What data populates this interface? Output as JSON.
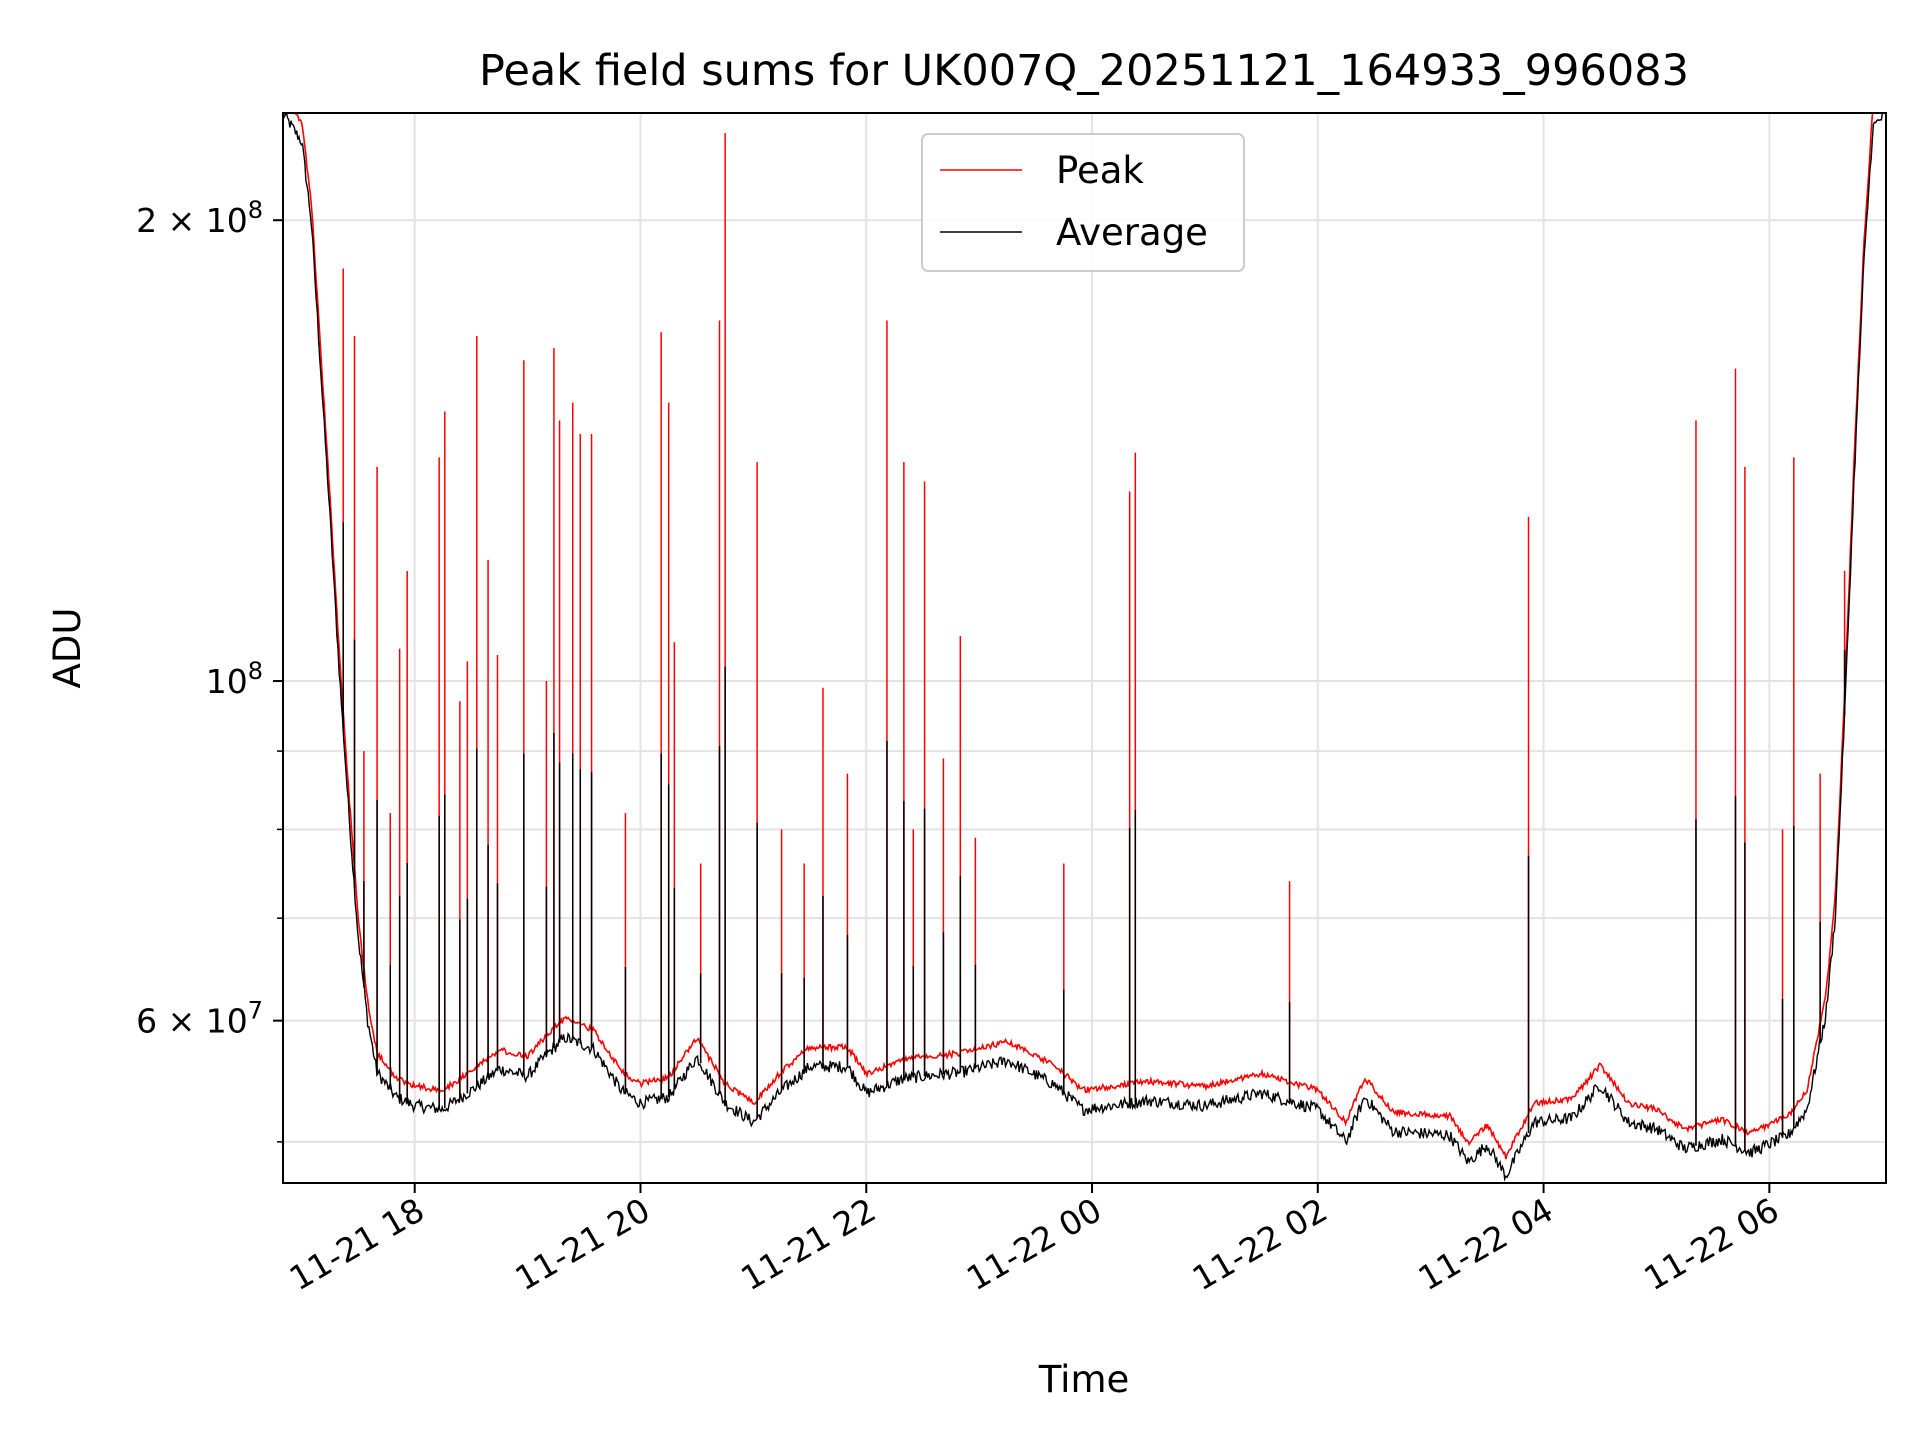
{
  "chart_data": {
    "type": "line",
    "title": "Peak field sums for UK007Q_20251121_164933_996083",
    "xlabel": "Time",
    "ylabel": "ADU",
    "yscale": "log",
    "ylim": [
      47000000,
      235000000
    ],
    "xlim": [
      "2025-11-21 16:50",
      "2025-11-22 07:02"
    ],
    "x_ticks": [
      {
        "t": "2025-11-21 18:00",
        "label": "11-21 18"
      },
      {
        "t": "2025-11-21 20:00",
        "label": "11-21 20"
      },
      {
        "t": "2025-11-21 22:00",
        "label": "11-21 22"
      },
      {
        "t": "2025-11-22 00:00",
        "label": "11-22 00"
      },
      {
        "t": "2025-11-22 02:00",
        "label": "11-22 02"
      },
      {
        "t": "2025-11-22 04:00",
        "label": "11-22 04"
      },
      {
        "t": "2025-11-22 06:00",
        "label": "11-22 06"
      }
    ],
    "y_ticks": [
      {
        "v": 60000000,
        "base": "6",
        "exp": "7"
      },
      {
        "v": 100000000,
        "base": "",
        "exp": "8"
      },
      {
        "v": 200000000,
        "base": "2",
        "exp": "8"
      }
    ],
    "y_minor": [
      50000000,
      70000000,
      80000000,
      90000000
    ],
    "grid": true,
    "legend_position": "top-center",
    "colors": {
      "Peak": "#ff0000",
      "Average": "#000000"
    },
    "series": [
      {
        "name": "Peak",
        "spikes": [
          [
            "2025-11-21 17:22",
            186000000
          ],
          [
            "2025-11-21 17:28",
            168000000
          ],
          [
            "2025-11-21 17:33",
            90000000
          ],
          [
            "2025-11-21 17:40",
            138000000
          ],
          [
            "2025-11-21 17:47",
            82000000
          ],
          [
            "2025-11-21 17:52",
            105000000
          ],
          [
            "2025-11-21 17:56",
            118000000
          ],
          [
            "2025-11-21 18:13",
            140000000
          ],
          [
            "2025-11-21 18:16",
            150000000
          ],
          [
            "2025-11-21 18:24",
            97000000
          ],
          [
            "2025-11-21 18:28",
            103000000
          ],
          [
            "2025-11-21 18:33",
            168000000
          ],
          [
            "2025-11-21 18:39",
            120000000
          ],
          [
            "2025-11-21 18:44",
            104000000
          ],
          [
            "2025-11-21 18:58",
            162000000
          ],
          [
            "2025-11-21 19:10",
            100000000
          ],
          [
            "2025-11-21 19:14",
            165000000
          ],
          [
            "2025-11-21 19:17",
            148000000
          ],
          [
            "2025-11-21 19:24",
            152000000
          ],
          [
            "2025-11-21 19:28",
            145000000
          ],
          [
            "2025-11-21 19:34",
            145000000
          ],
          [
            "2025-11-21 19:52",
            82000000
          ],
          [
            "2025-11-21 20:11",
            169000000
          ],
          [
            "2025-11-21 20:15",
            152000000
          ],
          [
            "2025-11-21 20:18",
            106000000
          ],
          [
            "2025-11-21 20:32",
            76000000
          ],
          [
            "2025-11-21 20:42",
            172000000
          ],
          [
            "2025-11-21 20:45",
            228000000
          ],
          [
            "2025-11-21 21:02",
            139000000
          ],
          [
            "2025-11-21 21:15",
            80000000
          ],
          [
            "2025-11-21 21:27",
            76000000
          ],
          [
            "2025-11-21 21:37",
            99000000
          ],
          [
            "2025-11-21 21:50",
            87000000
          ],
          [
            "2025-11-21 22:11",
            172000000
          ],
          [
            "2025-11-21 22:20",
            139000000
          ],
          [
            "2025-11-21 22:25",
            80000000
          ],
          [
            "2025-11-21 22:31",
            135000000
          ],
          [
            "2025-11-21 22:41",
            89000000
          ],
          [
            "2025-11-21 22:50",
            107000000
          ],
          [
            "2025-11-21 22:58",
            79000000
          ],
          [
            "2025-11-21 23:45",
            76000000
          ],
          [
            "2025-11-22 00:20",
            133000000
          ],
          [
            "2025-11-22 00:23",
            141000000
          ],
          [
            "2025-11-22 01:45",
            74000000
          ],
          [
            "2025-11-22 03:52",
            128000000
          ],
          [
            "2025-11-22 05:21",
            148000000
          ],
          [
            "2025-11-22 05:42",
            160000000
          ],
          [
            "2025-11-22 05:47",
            138000000
          ],
          [
            "2025-11-22 06:07",
            80000000
          ],
          [
            "2025-11-22 06:13",
            140000000
          ],
          [
            "2025-11-22 06:27",
            87000000
          ],
          [
            "2025-11-22 06:40",
            118000000
          ]
        ]
      },
      {
        "name": "Average",
        "baseline": [
          [
            "2025-11-21 16:50",
            235000000
          ],
          [
            "2025-11-21 17:00",
            225000000
          ],
          [
            "2025-11-21 17:05",
            200000000
          ],
          [
            "2025-11-21 17:10",
            160000000
          ],
          [
            "2025-11-21 17:15",
            128000000
          ],
          [
            "2025-11-21 17:20",
            101000000
          ],
          [
            "2025-11-21 17:25",
            82000000
          ],
          [
            "2025-11-21 17:30",
            68000000
          ],
          [
            "2025-11-21 17:35",
            60000000
          ],
          [
            "2025-11-21 17:40",
            55500000
          ],
          [
            "2025-11-21 17:50",
            53500000
          ],
          [
            "2025-11-21 18:00",
            52800000
          ],
          [
            "2025-11-21 18:15",
            52500000
          ],
          [
            "2025-11-21 18:30",
            54000000
          ],
          [
            "2025-11-21 18:45",
            55800000
          ],
          [
            "2025-11-21 19:00",
            55200000
          ],
          [
            "2025-11-21 19:10",
            57000000
          ],
          [
            "2025-11-21 19:20",
            58500000
          ],
          [
            "2025-11-21 19:35",
            57500000
          ],
          [
            "2025-11-21 19:50",
            54000000
          ],
          [
            "2025-11-21 20:00",
            53000000
          ],
          [
            "2025-11-21 20:15",
            53500000
          ],
          [
            "2025-11-21 20:30",
            56800000
          ],
          [
            "2025-11-21 20:45",
            53000000
          ],
          [
            "2025-11-21 21:00",
            51500000
          ],
          [
            "2025-11-21 21:15",
            54000000
          ],
          [
            "2025-11-21 21:30",
            56000000
          ],
          [
            "2025-11-21 21:50",
            56000000
          ],
          [
            "2025-11-21 22:00",
            53800000
          ],
          [
            "2025-11-21 22:20",
            55000000
          ],
          [
            "2025-11-21 22:50",
            55500000
          ],
          [
            "2025-11-21 23:15",
            56500000
          ],
          [
            "2025-11-21 23:40",
            54500000
          ],
          [
            "2025-11-21 23:55",
            52500000
          ],
          [
            "2025-11-22 00:30",
            53200000
          ],
          [
            "2025-11-22 01:00",
            52800000
          ],
          [
            "2025-11-22 01:30",
            53800000
          ],
          [
            "2025-11-22 02:00",
            52500000
          ],
          [
            "2025-11-22 02:15",
            50000000
          ],
          [
            "2025-11-22 02:25",
            53500000
          ],
          [
            "2025-11-22 02:40",
            50800000
          ],
          [
            "2025-11-22 03:10",
            50500000
          ],
          [
            "2025-11-22 03:20",
            48500000
          ],
          [
            "2025-11-22 03:30",
            49800000
          ],
          [
            "2025-11-22 03:40",
            47500000
          ],
          [
            "2025-11-22 03:55",
            51500000
          ],
          [
            "2025-11-22 04:15",
            51800000
          ],
          [
            "2025-11-22 04:30",
            54500000
          ],
          [
            "2025-11-22 04:45",
            51500000
          ],
          [
            "2025-11-22 05:00",
            51000000
          ],
          [
            "2025-11-22 05:15",
            49500000
          ],
          [
            "2025-11-22 05:35",
            50200000
          ],
          [
            "2025-11-22 05:50",
            49200000
          ],
          [
            "2025-11-22 06:10",
            50500000
          ],
          [
            "2025-11-22 06:20",
            52500000
          ],
          [
            "2025-11-22 06:30",
            60500000
          ],
          [
            "2025-11-22 06:35",
            70000000
          ],
          [
            "2025-11-22 06:40",
            95000000
          ],
          [
            "2025-11-22 06:45",
            135000000
          ],
          [
            "2025-11-22 06:50",
            185000000
          ],
          [
            "2025-11-22 06:55",
            230000000
          ],
          [
            "2025-11-22 07:02",
            235000000
          ]
        ]
      }
    ]
  }
}
